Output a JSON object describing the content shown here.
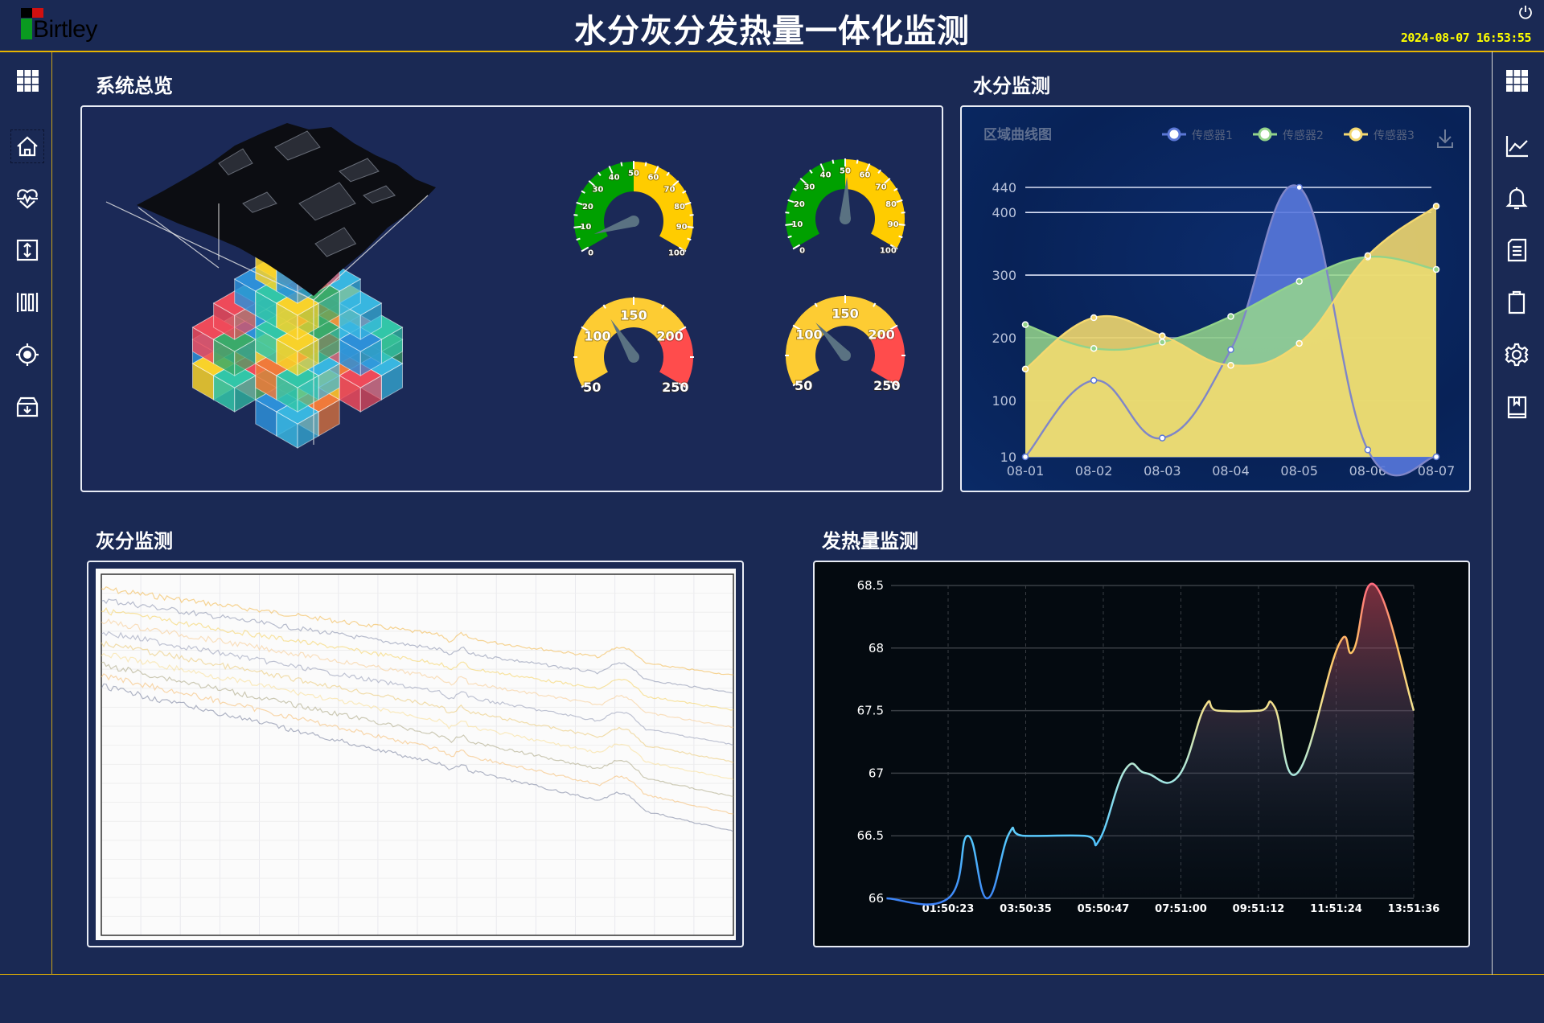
{
  "header": {
    "logo_text": "Birtley",
    "title": "水分灰分发热量一体化监测",
    "datetime": "2024-08-07 16:53:55"
  },
  "left_nav": [
    {
      "id": "apps",
      "icon": "grid-icon"
    },
    {
      "id": "home",
      "icon": "home-icon",
      "active": true
    },
    {
      "id": "health",
      "icon": "heart-pulse-icon"
    },
    {
      "id": "transfer",
      "icon": "vertical-arrows-icon"
    },
    {
      "id": "barcode",
      "icon": "barcode-icon"
    },
    {
      "id": "target",
      "icon": "target-icon"
    },
    {
      "id": "archive",
      "icon": "archive-download-icon"
    }
  ],
  "right_nav": [
    {
      "id": "apps",
      "icon": "grid-icon"
    },
    {
      "id": "trend",
      "icon": "line-chart-icon"
    },
    {
      "id": "alarm",
      "icon": "bell-icon"
    },
    {
      "id": "document",
      "icon": "document-icon"
    },
    {
      "id": "clipboard",
      "icon": "clipboard-icon"
    },
    {
      "id": "settings",
      "icon": "gear-icon"
    },
    {
      "id": "manual",
      "icon": "book-icon"
    }
  ],
  "sections": {
    "overview": "系统总览",
    "moisture": "水分监测",
    "ash": "灰分监测",
    "heat": "发热量监测"
  },
  "gauges": [
    {
      "min": 0,
      "max": 100,
      "value": 5,
      "labels": [
        "0",
        "10",
        "20",
        "30",
        "40",
        "50",
        "60",
        "70",
        "80",
        "90",
        "100"
      ],
      "bands": [
        {
          "to": 50,
          "color": "#00a000"
        },
        {
          "to": 100,
          "color": "#ffcc00"
        }
      ]
    },
    {
      "min": 0,
      "max": 100,
      "value": 51,
      "labels": [
        "0",
        "10",
        "20",
        "30",
        "40",
        "50",
        "60",
        "70",
        "80",
        "90",
        "100"
      ],
      "bands": [
        {
          "to": 50,
          "color": "#00a000"
        },
        {
          "to": 100,
          "color": "#ffcc00"
        }
      ]
    },
    {
      "min": 50,
      "max": 250,
      "value": 124,
      "labels": [
        "50",
        "100",
        "150",
        "200",
        "250"
      ],
      "bands": [
        {
          "to": 200,
          "color": "#fdcc33"
        },
        {
          "to": 250,
          "color": "#ff4c4c"
        }
      ]
    },
    {
      "min": 50,
      "max": 250,
      "value": 115,
      "labels": [
        "50",
        "100",
        "150",
        "200",
        "250"
      ],
      "bands": [
        {
          "to": 200,
          "color": "#fdcc33"
        },
        {
          "to": 250,
          "color": "#ff4c4c"
        }
      ]
    }
  ],
  "colors": {
    "accent_line": "#e8b400",
    "needle": "#5a7282",
    "ash_lines": [
      "#f2b23c",
      "#7d86a6",
      "#f5cf55",
      "#f7c88a",
      "#8c94b0",
      "#e9c46a",
      "#f9dc8c",
      "#a6a07a",
      "#f6b866",
      "#6f7898"
    ],
    "cube_palette": [
      "#2d8fd8",
      "#f8d22a",
      "#32c6a8",
      "#f07a3a",
      "#ee4a5a",
      "#3aaa6a",
      "#38b6e0"
    ]
  },
  "chart_data": [
    {
      "type": "area",
      "title": "区域曲线图",
      "categories": [
        "08-01",
        "08-02",
        "08-03",
        "08-04",
        "08-05",
        "08-06",
        "08-07"
      ],
      "ylim": [
        10,
        440
      ],
      "yticks": [
        "10",
        "100",
        "200",
        "300",
        "400",
        "440"
      ],
      "legend": "top-right",
      "download_icon": "download-icon",
      "series": [
        {
          "name": "传感器1",
          "color": "#5b77d6",
          "values": [
            10,
            132,
            40,
            181,
            440,
            21,
            10
          ]
        },
        {
          "name": "传感器2",
          "color": "#93d38a",
          "values": [
            221,
            183,
            193,
            234,
            290,
            329,
            309
          ]
        },
        {
          "name": "传感器3",
          "color": "#f4d870",
          "values": [
            150,
            232,
            203,
            156,
            191,
            331,
            410
          ]
        }
      ]
    },
    {
      "type": "line",
      "ylim": [
        66,
        68.5
      ],
      "yticks": [
        "66",
        "66.5",
        "67",
        "67.5",
        "68",
        "68.5"
      ],
      "xticks": [
        "01:50:23",
        "03:50:35",
        "05:50:47",
        "07:51:00",
        "09:51:12",
        "11:51:24",
        "13:51:36"
      ],
      "grid": true,
      "points": [
        [
          "00:15:00",
          66
        ],
        [
          "01:50:23",
          66
        ],
        [
          "02:21:00",
          66.5
        ],
        [
          "02:51:00",
          66
        ],
        [
          "03:25:00",
          66.52
        ],
        [
          "03:48:00",
          66.5
        ],
        [
          "05:22:00",
          66.5
        ],
        [
          "05:45:00",
          66.47
        ],
        [
          "06:25:00",
          67.03
        ],
        [
          "06:57:00",
          67.0
        ],
        [
          "07:46:00",
          66.97
        ],
        [
          "08:28:00",
          67.53
        ],
        [
          "08:48:00",
          67.5
        ],
        [
          "09:53:00",
          67.5
        ],
        [
          "10:16:00",
          67.53
        ],
        [
          "10:51:00",
          67.0
        ],
        [
          "11:55:00",
          68.02
        ],
        [
          "12:18:00",
          67.98
        ],
        [
          "12:52:00",
          68.5
        ],
        [
          "13:51:36",
          67.5
        ]
      ]
    }
  ]
}
